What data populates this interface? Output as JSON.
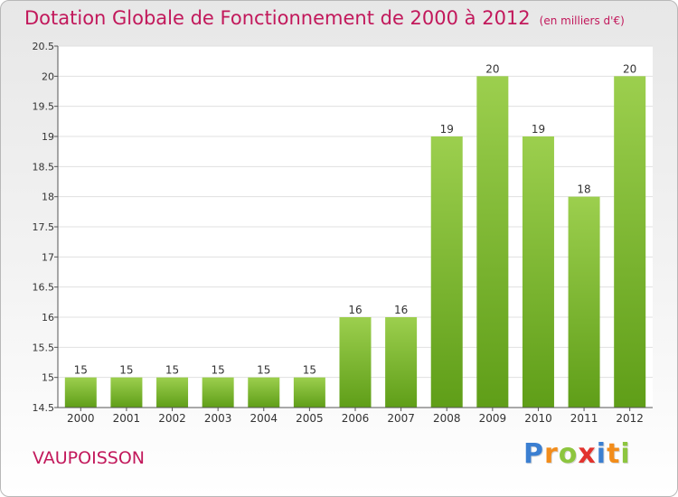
{
  "header": {
    "title": "Dotation Globale de Fonctionnement de 2000 à 2012",
    "unit": "(en milliers d'€)"
  },
  "footer": {
    "commune": "VAUPOISSON",
    "logo_letters": [
      {
        "char": "P",
        "color": "#3b7fd1"
      },
      {
        "char": "r",
        "color": "#f28c1a"
      },
      {
        "char": "o",
        "color": "#8dc63f"
      },
      {
        "char": "x",
        "color": "#e2332e"
      },
      {
        "char": "i",
        "color": "#3b7fd1"
      },
      {
        "char": "t",
        "color": "#f28c1a"
      },
      {
        "char": "i",
        "color": "#8dc63f"
      }
    ]
  },
  "colors": {
    "bar_top": "#9ccf4e",
    "bar_bottom": "#5f9e18",
    "title": "#c2185b"
  },
  "chart_data": {
    "type": "bar",
    "categories": [
      "2000",
      "2001",
      "2002",
      "2003",
      "2004",
      "2005",
      "2006",
      "2007",
      "2008",
      "2009",
      "2010",
      "2011",
      "2012"
    ],
    "values": [
      15,
      15,
      15,
      15,
      15,
      15,
      16,
      16,
      19,
      20,
      19,
      18,
      20
    ],
    "ylim": [
      14.5,
      20.5
    ],
    "yticks": [
      14.5,
      15,
      15.5,
      16,
      16.5,
      17,
      17.5,
      18,
      18.5,
      19,
      19.5,
      20,
      20.5
    ],
    "grid": true
  }
}
